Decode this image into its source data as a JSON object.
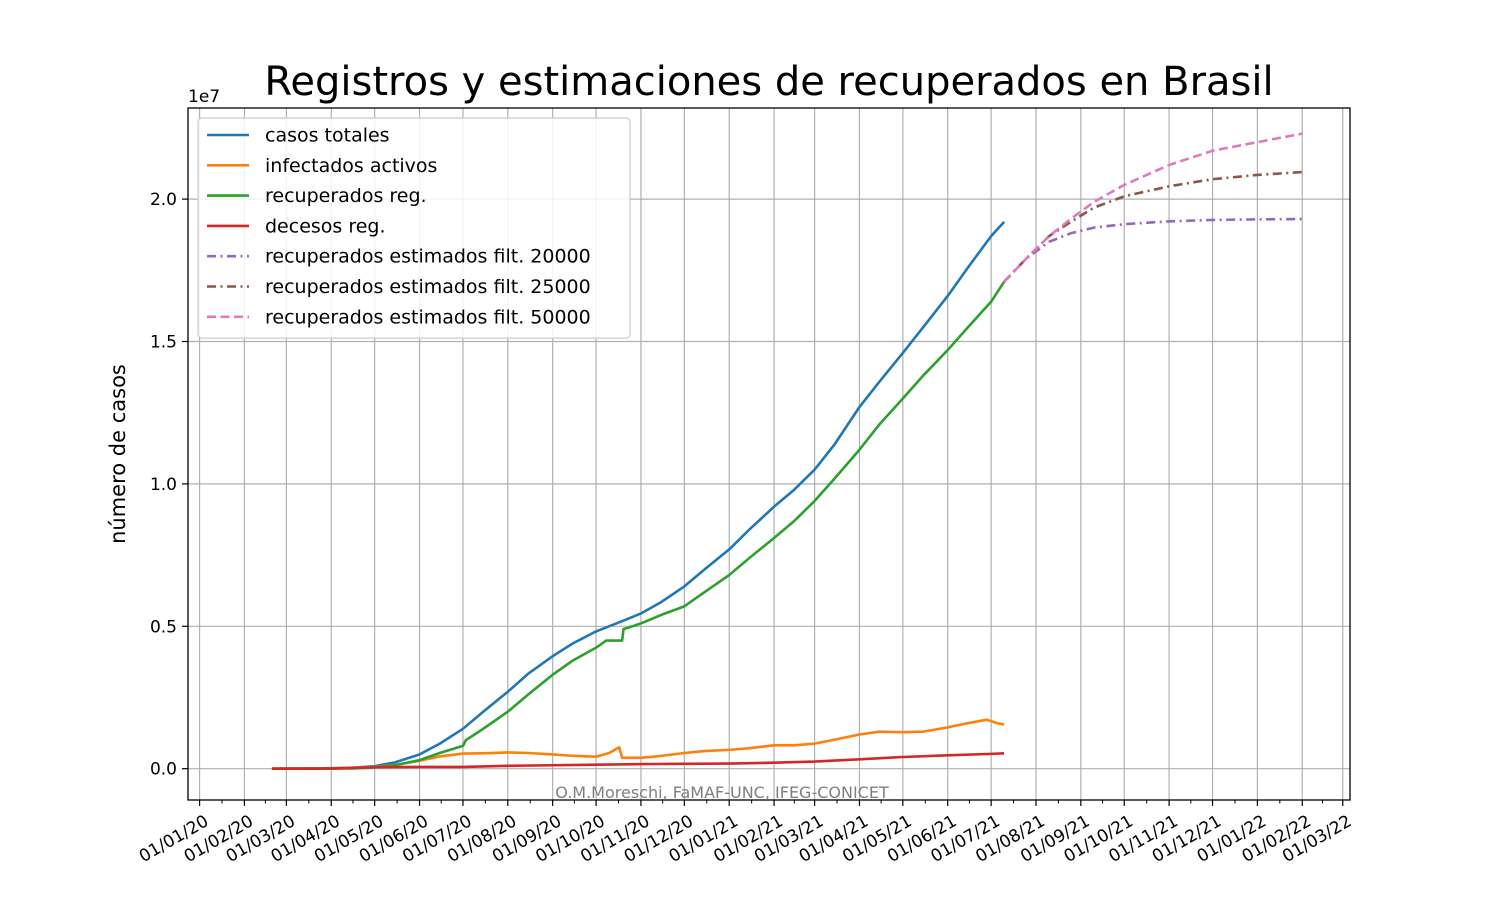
{
  "chart_data": {
    "type": "line",
    "title": "Registros y estimaciones de recuperados en Brasil",
    "xlabel": "",
    "ylabel": "número de casos",
    "y_scale_note": "1e7",
    "y_multiplier": 10000000,
    "ylim": [
      -0.11,
      2.32
    ],
    "xlim": [
      "2019-12-24",
      "2022-03-06"
    ],
    "y_ticks": [
      0.0,
      0.5,
      1.0,
      1.5,
      2.0
    ],
    "y_tick_labels": [
      "0.0",
      "0.5",
      "1.0",
      "1.5",
      "2.0"
    ],
    "x_ticks": [
      "2020-01-01",
      "2020-02-01",
      "2020-03-01",
      "2020-04-01",
      "2020-05-01",
      "2020-06-01",
      "2020-07-01",
      "2020-08-01",
      "2020-09-01",
      "2020-10-01",
      "2020-11-01",
      "2020-12-01",
      "2021-01-01",
      "2021-02-01",
      "2021-03-01",
      "2021-04-01",
      "2021-05-01",
      "2021-06-01",
      "2021-07-01",
      "2021-08-01",
      "2021-09-01",
      "2021-10-01",
      "2021-11-01",
      "2021-12-01",
      "2022-01-01",
      "2022-02-01",
      "2022-03-01"
    ],
    "x_tick_labels": [
      "01/01/20",
      "01/02/20",
      "01/03/20",
      "01/04/20",
      "01/05/20",
      "01/06/20",
      "01/07/20",
      "01/08/20",
      "01/09/20",
      "01/10/20",
      "01/11/20",
      "01/12/20",
      "01/01/21",
      "01/02/21",
      "01/03/21",
      "01/04/21",
      "01/05/21",
      "01/06/21",
      "01/07/21",
      "01/08/21",
      "01/09/21",
      "01/10/21",
      "01/11/21",
      "01/12/21",
      "01/01/22",
      "01/02/22",
      "01/03/22"
    ],
    "grid": true,
    "legend_position": "upper-left",
    "series": [
      {
        "name": "casos totales",
        "color": "#1f77b4",
        "style": "solid",
        "points": [
          [
            "2020-02-20",
            0
          ],
          [
            "2020-03-20",
            0.001
          ],
          [
            "2020-04-15",
            0.003
          ],
          [
            "2020-05-01",
            0.009
          ],
          [
            "2020-05-15",
            0.022
          ],
          [
            "2020-06-01",
            0.05
          ],
          [
            "2020-06-15",
            0.088
          ],
          [
            "2020-07-01",
            0.14
          ],
          [
            "2020-07-15",
            0.2
          ],
          [
            "2020-08-01",
            0.27
          ],
          [
            "2020-08-15",
            0.333
          ],
          [
            "2020-09-01",
            0.395
          ],
          [
            "2020-09-15",
            0.44
          ],
          [
            "2020-10-01",
            0.482
          ],
          [
            "2020-10-15",
            0.51
          ],
          [
            "2020-11-01",
            0.545
          ],
          [
            "2020-11-15",
            0.585
          ],
          [
            "2020-12-01",
            0.64
          ],
          [
            "2020-12-15",
            0.7
          ],
          [
            "2021-01-01",
            0.77
          ],
          [
            "2021-01-15",
            0.84
          ],
          [
            "2021-02-01",
            0.92
          ],
          [
            "2021-02-15",
            0.98
          ],
          [
            "2021-03-01",
            1.05
          ],
          [
            "2021-03-15",
            1.14
          ],
          [
            "2021-04-01",
            1.27
          ],
          [
            "2021-04-15",
            1.36
          ],
          [
            "2021-05-01",
            1.46
          ],
          [
            "2021-05-15",
            1.55
          ],
          [
            "2021-06-01",
            1.66
          ],
          [
            "2021-06-15",
            1.76
          ],
          [
            "2021-07-01",
            1.87
          ],
          [
            "2021-07-10",
            1.92
          ]
        ]
      },
      {
        "name": "infectados activos",
        "color": "#ff7f0e",
        "style": "solid",
        "points": [
          [
            "2020-02-20",
            0
          ],
          [
            "2020-04-01",
            0.001
          ],
          [
            "2020-05-01",
            0.006
          ],
          [
            "2020-05-15",
            0.013
          ],
          [
            "2020-06-01",
            0.028
          ],
          [
            "2020-06-15",
            0.043
          ],
          [
            "2020-07-01",
            0.053
          ],
          [
            "2020-07-15",
            0.054
          ],
          [
            "2020-08-01",
            0.057
          ],
          [
            "2020-08-15",
            0.055
          ],
          [
            "2020-09-01",
            0.05
          ],
          [
            "2020-09-15",
            0.045
          ],
          [
            "2020-10-01",
            0.042
          ],
          [
            "2020-10-10",
            0.055
          ],
          [
            "2020-10-17",
            0.075
          ],
          [
            "2020-10-19",
            0.038
          ],
          [
            "2020-11-01",
            0.038
          ],
          [
            "2020-11-15",
            0.045
          ],
          [
            "2020-12-01",
            0.055
          ],
          [
            "2020-12-15",
            0.062
          ],
          [
            "2021-01-01",
            0.066
          ],
          [
            "2021-01-15",
            0.072
          ],
          [
            "2021-02-01",
            0.082
          ],
          [
            "2021-02-15",
            0.082
          ],
          [
            "2021-03-01",
            0.088
          ],
          [
            "2021-03-15",
            0.102
          ],
          [
            "2021-04-01",
            0.12
          ],
          [
            "2021-04-15",
            0.13
          ],
          [
            "2021-05-01",
            0.128
          ],
          [
            "2021-05-15",
            0.13
          ],
          [
            "2021-06-01",
            0.145
          ],
          [
            "2021-06-15",
            0.16
          ],
          [
            "2021-06-28",
            0.172
          ],
          [
            "2021-07-05",
            0.16
          ],
          [
            "2021-07-10",
            0.155
          ]
        ]
      },
      {
        "name": "recuperados reg.",
        "color": "#2ca02c",
        "style": "solid",
        "points": [
          [
            "2020-02-20",
            0
          ],
          [
            "2020-04-15",
            0.001
          ],
          [
            "2020-05-01",
            0.004
          ],
          [
            "2020-05-15",
            0.012
          ],
          [
            "2020-06-01",
            0.03
          ],
          [
            "2020-06-15",
            0.055
          ],
          [
            "2020-07-01",
            0.08
          ],
          [
            "2020-07-03",
            0.1
          ],
          [
            "2020-07-15",
            0.14
          ],
          [
            "2020-08-01",
            0.2
          ],
          [
            "2020-08-15",
            0.26
          ],
          [
            "2020-09-01",
            0.33
          ],
          [
            "2020-09-15",
            0.38
          ],
          [
            "2020-10-01",
            0.425
          ],
          [
            "2020-10-08",
            0.45
          ],
          [
            "2020-10-19",
            0.45
          ],
          [
            "2020-10-20",
            0.49
          ],
          [
            "2020-11-01",
            0.51
          ],
          [
            "2020-11-15",
            0.54
          ],
          [
            "2020-12-01",
            0.57
          ],
          [
            "2020-12-15",
            0.62
          ],
          [
            "2021-01-01",
            0.68
          ],
          [
            "2021-01-15",
            0.74
          ],
          [
            "2021-02-01",
            0.81
          ],
          [
            "2021-02-15",
            0.87
          ],
          [
            "2021-03-01",
            0.94
          ],
          [
            "2021-03-15",
            1.02
          ],
          [
            "2021-04-01",
            1.12
          ],
          [
            "2021-04-15",
            1.21
          ],
          [
            "2021-05-01",
            1.3
          ],
          [
            "2021-05-15",
            1.38
          ],
          [
            "2021-06-01",
            1.47
          ],
          [
            "2021-06-15",
            1.55
          ],
          [
            "2021-07-01",
            1.64
          ],
          [
            "2021-07-10",
            1.71
          ]
        ]
      },
      {
        "name": "decesos reg.",
        "color": "#d62728",
        "style": "solid",
        "points": [
          [
            "2020-02-20",
            0
          ],
          [
            "2020-04-01",
            0.0005
          ],
          [
            "2020-05-01",
            0.005
          ],
          [
            "2020-06-01",
            0.006
          ],
          [
            "2020-07-01",
            0.006
          ],
          [
            "2020-08-01",
            0.01
          ],
          [
            "2020-09-01",
            0.012
          ],
          [
            "2020-10-01",
            0.014
          ],
          [
            "2020-11-01",
            0.016
          ],
          [
            "2020-12-01",
            0.017
          ],
          [
            "2021-01-01",
            0.018
          ],
          [
            "2021-02-01",
            0.021
          ],
          [
            "2021-03-01",
            0.025
          ],
          [
            "2021-04-01",
            0.033
          ],
          [
            "2021-05-01",
            0.041
          ],
          [
            "2021-06-01",
            0.047
          ],
          [
            "2021-07-01",
            0.052
          ],
          [
            "2021-07-10",
            0.054
          ]
        ]
      },
      {
        "name": "recuperados estimados filt. 20000",
        "color": "#9467bd",
        "style": "dashdot",
        "points": [
          [
            "2021-07-10",
            1.71
          ],
          [
            "2021-07-25",
            1.79
          ],
          [
            "2021-08-10",
            1.85
          ],
          [
            "2021-08-25",
            1.88
          ],
          [
            "2021-09-10",
            1.9
          ],
          [
            "2021-10-01",
            1.912
          ],
          [
            "2021-11-01",
            1.922
          ],
          [
            "2021-12-01",
            1.927
          ],
          [
            "2022-01-01",
            1.929
          ],
          [
            "2022-02-01",
            1.93
          ]
        ]
      },
      {
        "name": "recuperados estimados filt. 25000",
        "color": "#8c564b",
        "style": "dashdot",
        "points": [
          [
            "2021-07-10",
            1.71
          ],
          [
            "2021-07-25",
            1.79
          ],
          [
            "2021-08-10",
            1.87
          ],
          [
            "2021-08-25",
            1.92
          ],
          [
            "2021-09-10",
            1.97
          ],
          [
            "2021-10-01",
            2.01
          ],
          [
            "2021-11-01",
            2.045
          ],
          [
            "2021-12-01",
            2.07
          ],
          [
            "2022-01-01",
            2.085
          ],
          [
            "2022-02-01",
            2.095
          ]
        ]
      },
      {
        "name": "recuperados estimados filt. 50000",
        "color": "#e377c2",
        "style": "dashed",
        "points": [
          [
            "2021-07-10",
            1.71
          ],
          [
            "2021-07-25",
            1.79
          ],
          [
            "2021-08-10",
            1.87
          ],
          [
            "2021-08-25",
            1.93
          ],
          [
            "2021-09-10",
            1.99
          ],
          [
            "2021-10-01",
            2.05
          ],
          [
            "2021-11-01",
            2.12
          ],
          [
            "2021-12-01",
            2.17
          ],
          [
            "2022-01-01",
            2.2
          ],
          [
            "2022-02-01",
            2.23
          ]
        ]
      }
    ],
    "credit": "O.M.Moreschi, FaMAF-UNC, IFEG-CONICET"
  }
}
